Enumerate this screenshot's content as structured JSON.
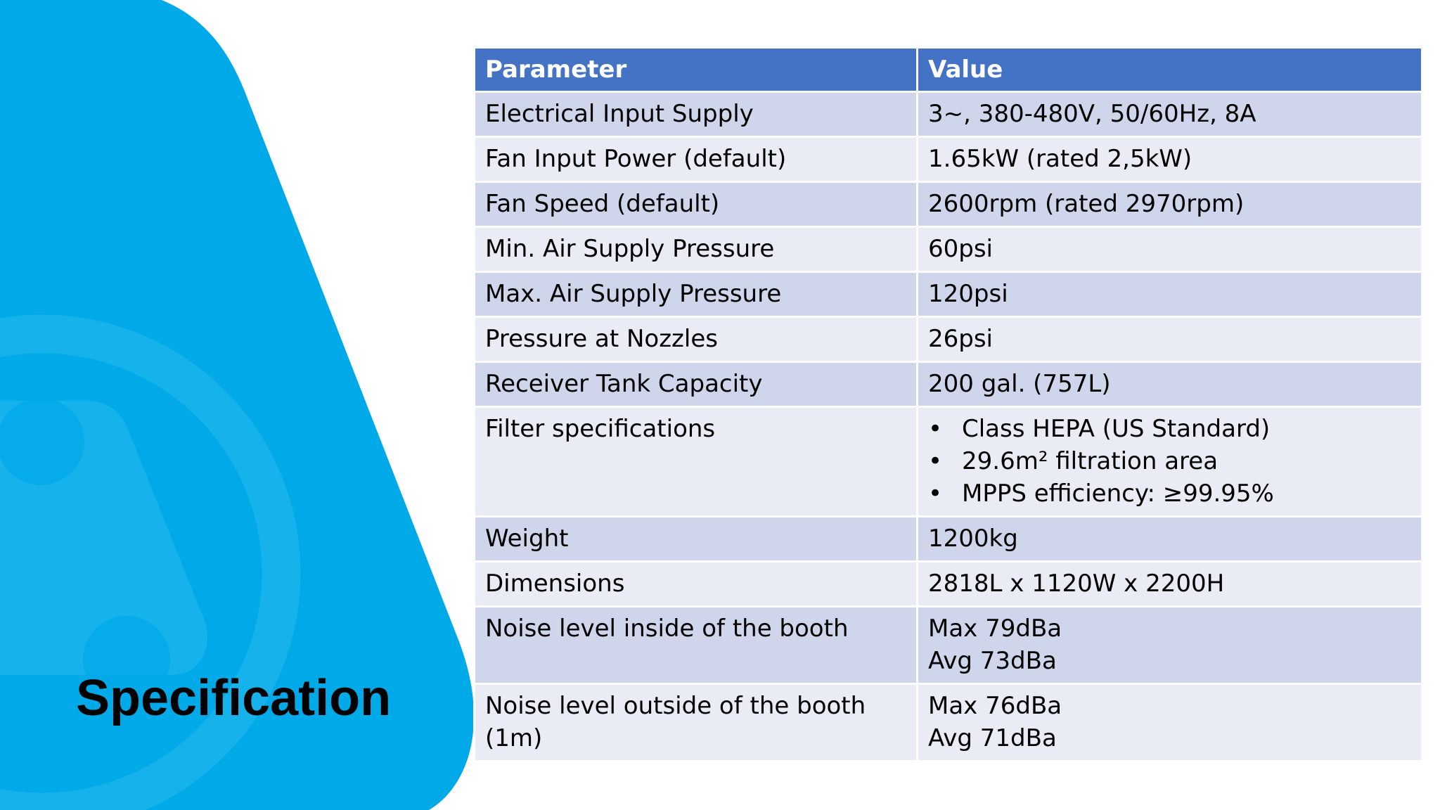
{
  "title": "Specification",
  "colors": {
    "brand_blue": "#00a9e8",
    "header_blue": "#4472c4",
    "row_dark": "#cfd5ea",
    "row_light": "#e9ebf5"
  },
  "table": {
    "headers": [
      "Parameter",
      "Value"
    ],
    "rows": [
      {
        "parameter": "Electrical Input Supply",
        "value": "3~, 380-480V, 50/60Hz, 8A"
      },
      {
        "parameter": "Fan Input Power (default)",
        "value": "1.65kW (rated 2,5kW)"
      },
      {
        "parameter": "Fan Speed (default)",
        "value": "2600rpm (rated 2970rpm)"
      },
      {
        "parameter": "Min. Air Supply Pressure",
        "value": "60psi"
      },
      {
        "parameter": "Max. Air Supply Pressure",
        "value": "120psi"
      },
      {
        "parameter": "Pressure at Nozzles",
        "value": "26psi"
      },
      {
        "parameter": "Receiver Tank Capacity",
        "value": "200 gal. (757L)"
      },
      {
        "parameter": "Filter specifications",
        "bullets": [
          "Class HEPA (US Standard)",
          "29.6m² filtration area",
          "MPPS efficiency: ≥99.95%"
        ]
      },
      {
        "parameter": "Weight",
        "value": "1200kg"
      },
      {
        "parameter": "Dimensions",
        "value": "2818L x 1120W x 2200H"
      },
      {
        "parameter": "Noise level inside of the booth",
        "lines": [
          "Max 79dBa",
          "Avg 73dBa"
        ]
      },
      {
        "parameter": "Noise level outside of the booth (1m)",
        "lines": [
          "Max 76dBa",
          "Avg 71dBa"
        ]
      }
    ]
  }
}
